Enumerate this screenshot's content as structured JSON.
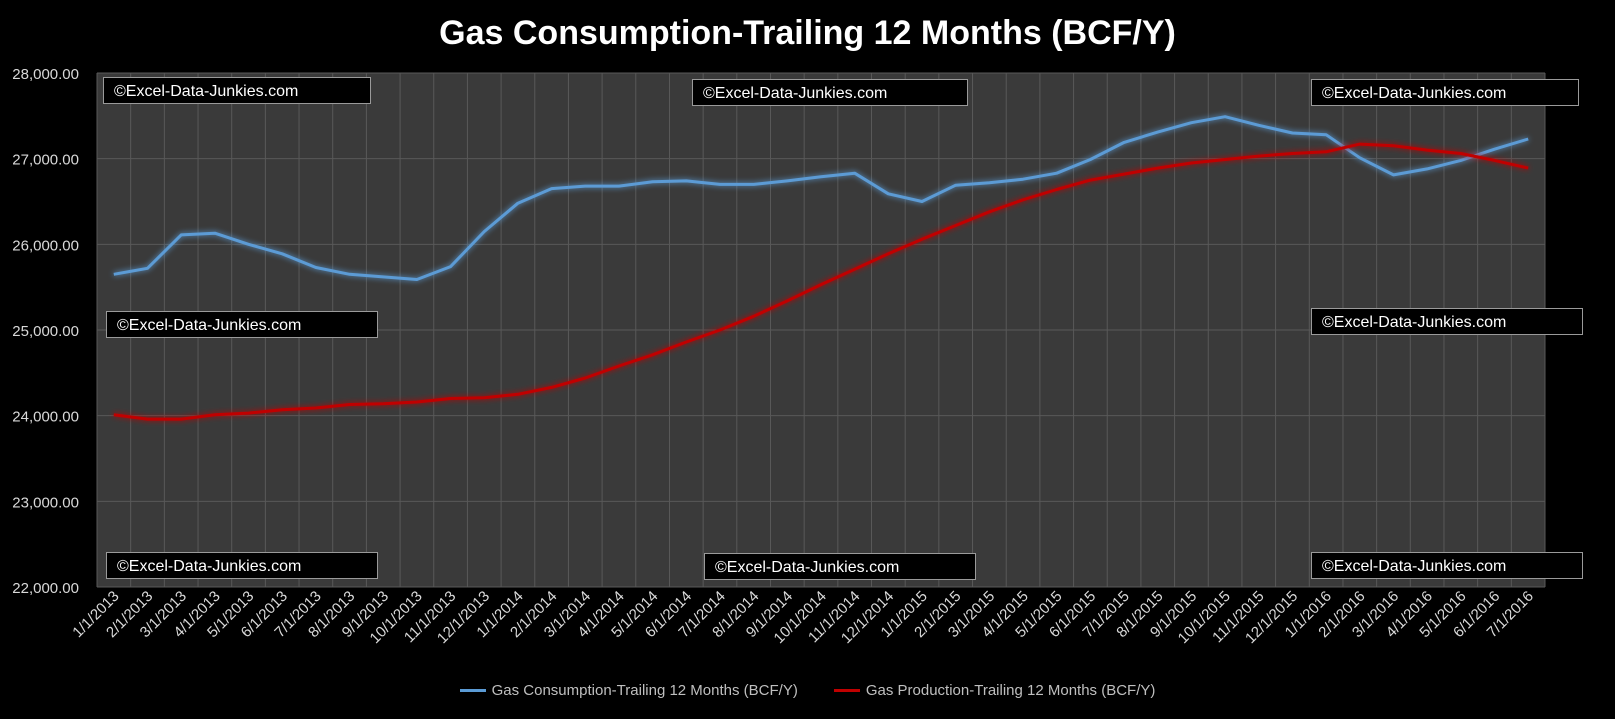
{
  "chart_data": {
    "type": "line",
    "title": "Gas Consumption-Trailing 12 Months (BCF/Y)",
    "ylim": [
      22000,
      28000
    ],
    "yticks": [
      "22,000.00",
      "23,000.00",
      "24,000.00",
      "25,000.00",
      "26,000.00",
      "27,000.00",
      "28,000.00"
    ],
    "ytick_values": [
      22000,
      23000,
      24000,
      25000,
      26000,
      27000,
      28000
    ],
    "grid": true,
    "legend_position": "bottom",
    "categories": [
      "1/1/2013",
      "2/1/2013",
      "3/1/2013",
      "4/1/2013",
      "5/1/2013",
      "6/1/2013",
      "7/1/2013",
      "8/1/2013",
      "9/1/2013",
      "10/1/2013",
      "11/1/2013",
      "12/1/2013",
      "1/1/2014",
      "2/1/2014",
      "3/1/2014",
      "4/1/2014",
      "5/1/2014",
      "6/1/2014",
      "7/1/2014",
      "8/1/2014",
      "9/1/2014",
      "10/1/2014",
      "11/1/2014",
      "12/1/2014",
      "1/1/2015",
      "2/1/2015",
      "3/1/2015",
      "4/1/2015",
      "5/1/2015",
      "6/1/2015",
      "7/1/2015",
      "8/1/2015",
      "9/1/2015",
      "10/1/2015",
      "11/1/2015",
      "12/1/2015",
      "1/1/2016",
      "2/1/2016",
      "3/1/2016",
      "4/1/2016",
      "5/1/2016",
      "6/1/2016",
      "7/1/2016"
    ],
    "series": [
      {
        "name": "Gas Consumption-Trailing 12 Months (BCF/Y)",
        "color": "#5b9bd5",
        "values": [
          25650,
          25720,
          26110,
          26130,
          26000,
          25890,
          25730,
          25650,
          25620,
          25590,
          25740,
          26150,
          26480,
          26650,
          26680,
          26680,
          26730,
          26740,
          26700,
          26700,
          26740,
          26790,
          26830,
          26590,
          26500,
          26690,
          26720,
          26760,
          26830,
          26990,
          27190,
          27310,
          27420,
          27490,
          27390,
          27300,
          27280,
          27010,
          26810,
          26880,
          26980,
          27110,
          27230
        ]
      },
      {
        "name": "Gas Production-Trailing 12 Months (BCF/Y)",
        "color": "#c00000",
        "values": [
          24010,
          23960,
          23960,
          24010,
          24030,
          24070,
          24090,
          24130,
          24140,
          24160,
          24200,
          24210,
          24250,
          24330,
          24440,
          24580,
          24710,
          24860,
          25000,
          25160,
          25340,
          25530,
          25710,
          25890,
          26060,
          26220,
          26380,
          26520,
          26640,
          26750,
          26820,
          26890,
          26950,
          26990,
          27030,
          27060,
          27080,
          27170,
          27150,
          27100,
          27060,
          26980,
          26890
        ]
      }
    ],
    "watermark": "©Excel-Data-Junkies.com"
  }
}
